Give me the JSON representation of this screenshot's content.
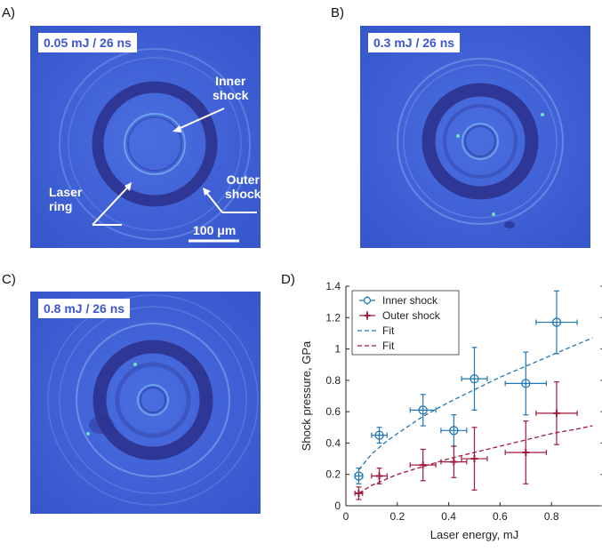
{
  "panels": {
    "a": {
      "letter": "A)",
      "tag": "0.05 mJ / 26 ns",
      "labels": {
        "inner": [
          "Inner",
          "shock"
        ],
        "outer": [
          "Outer",
          "shock"
        ],
        "laser": [
          "Laser",
          "ring"
        ]
      },
      "scalebar_label": "100 μm"
    },
    "b": {
      "letter": "B)",
      "tag": "0.3 mJ / 26 ns"
    },
    "c": {
      "letter": "C)",
      "tag": "0.8 mJ / 26 ns"
    },
    "d": {
      "letter": "D)"
    }
  },
  "colors": {
    "image_background": "#3f63d8",
    "tag_text": "#3d55d6",
    "inner_series": "#1f77b4",
    "outer_series": "#a01a3c"
  },
  "chart_data": {
    "type": "scatter",
    "xlabel": "Laser energy, mJ",
    "ylabel": "Shock pressure, GPa",
    "xlim": [
      0,
      1
    ],
    "ylim": [
      0,
      1.4
    ],
    "xticks": [
      0,
      0.2,
      0.4,
      0.6,
      0.8
    ],
    "yticks": [
      0,
      0.2,
      0.4,
      0.6,
      0.8,
      1,
      1.2,
      1.4
    ],
    "xtick_labels": [
      "0",
      "0.2",
      "0.4",
      "0.6",
      "0.8"
    ],
    "ytick_labels": [
      "0",
      "0.2",
      "0.4",
      "0.6",
      "0.8",
      "1",
      "1.2",
      "1.4"
    ],
    "legend_position": "top-left",
    "series": [
      {
        "name": "Inner shock",
        "marker": "circle",
        "color": "#1f77b4",
        "points": [
          {
            "x": 0.05,
            "y": 0.19,
            "xerr": 0.015,
            "yerr": 0.05
          },
          {
            "x": 0.13,
            "y": 0.45,
            "xerr": 0.03,
            "yerr": 0.05
          },
          {
            "x": 0.3,
            "y": 0.61,
            "xerr": 0.05,
            "yerr": 0.1
          },
          {
            "x": 0.42,
            "y": 0.48,
            "xerr": 0.05,
            "yerr": 0.1
          },
          {
            "x": 0.5,
            "y": 0.81,
            "xerr": 0.05,
            "yerr": 0.2
          },
          {
            "x": 0.7,
            "y": 0.78,
            "xerr": 0.08,
            "yerr": 0.2
          },
          {
            "x": 0.82,
            "y": 1.17,
            "xerr": 0.08,
            "yerr": 0.2
          }
        ]
      },
      {
        "name": "Outer shock",
        "marker": "plus",
        "color": "#a01a3c",
        "points": [
          {
            "x": 0.05,
            "y": 0.08,
            "xerr": 0.015,
            "yerr": 0.04
          },
          {
            "x": 0.13,
            "y": 0.19,
            "xerr": 0.03,
            "yerr": 0.05
          },
          {
            "x": 0.3,
            "y": 0.26,
            "xerr": 0.05,
            "yerr": 0.1
          },
          {
            "x": 0.42,
            "y": 0.28,
            "xerr": 0.05,
            "yerr": 0.1
          },
          {
            "x": 0.5,
            "y": 0.3,
            "xerr": 0.05,
            "yerr": 0.2
          },
          {
            "x": 0.7,
            "y": 0.34,
            "xerr": 0.08,
            "yerr": 0.2
          },
          {
            "x": 0.82,
            "y": 0.59,
            "xerr": 0.08,
            "yerr": 0.2
          }
        ]
      }
    ],
    "fits": [
      {
        "name": "Fit",
        "color": "#1f77b4",
        "dash": true,
        "points": [
          [
            0.05,
            0.23
          ],
          [
            0.1,
            0.33
          ],
          [
            0.15,
            0.4
          ],
          [
            0.2,
            0.46
          ],
          [
            0.3,
            0.57
          ],
          [
            0.4,
            0.66
          ],
          [
            0.5,
            0.74
          ],
          [
            0.6,
            0.82
          ],
          [
            0.7,
            0.89
          ],
          [
            0.8,
            0.96
          ],
          [
            0.9,
            1.03
          ],
          [
            0.96,
            1.07
          ]
        ]
      },
      {
        "name": "Fit",
        "color": "#a01a3c",
        "dash": true,
        "points": [
          [
            0.05,
            0.08
          ],
          [
            0.1,
            0.13
          ],
          [
            0.2,
            0.2
          ],
          [
            0.3,
            0.25
          ],
          [
            0.4,
            0.3
          ],
          [
            0.5,
            0.34
          ],
          [
            0.6,
            0.38
          ],
          [
            0.7,
            0.42
          ],
          [
            0.8,
            0.46
          ],
          [
            0.9,
            0.49
          ],
          [
            0.96,
            0.51
          ]
        ]
      }
    ]
  }
}
